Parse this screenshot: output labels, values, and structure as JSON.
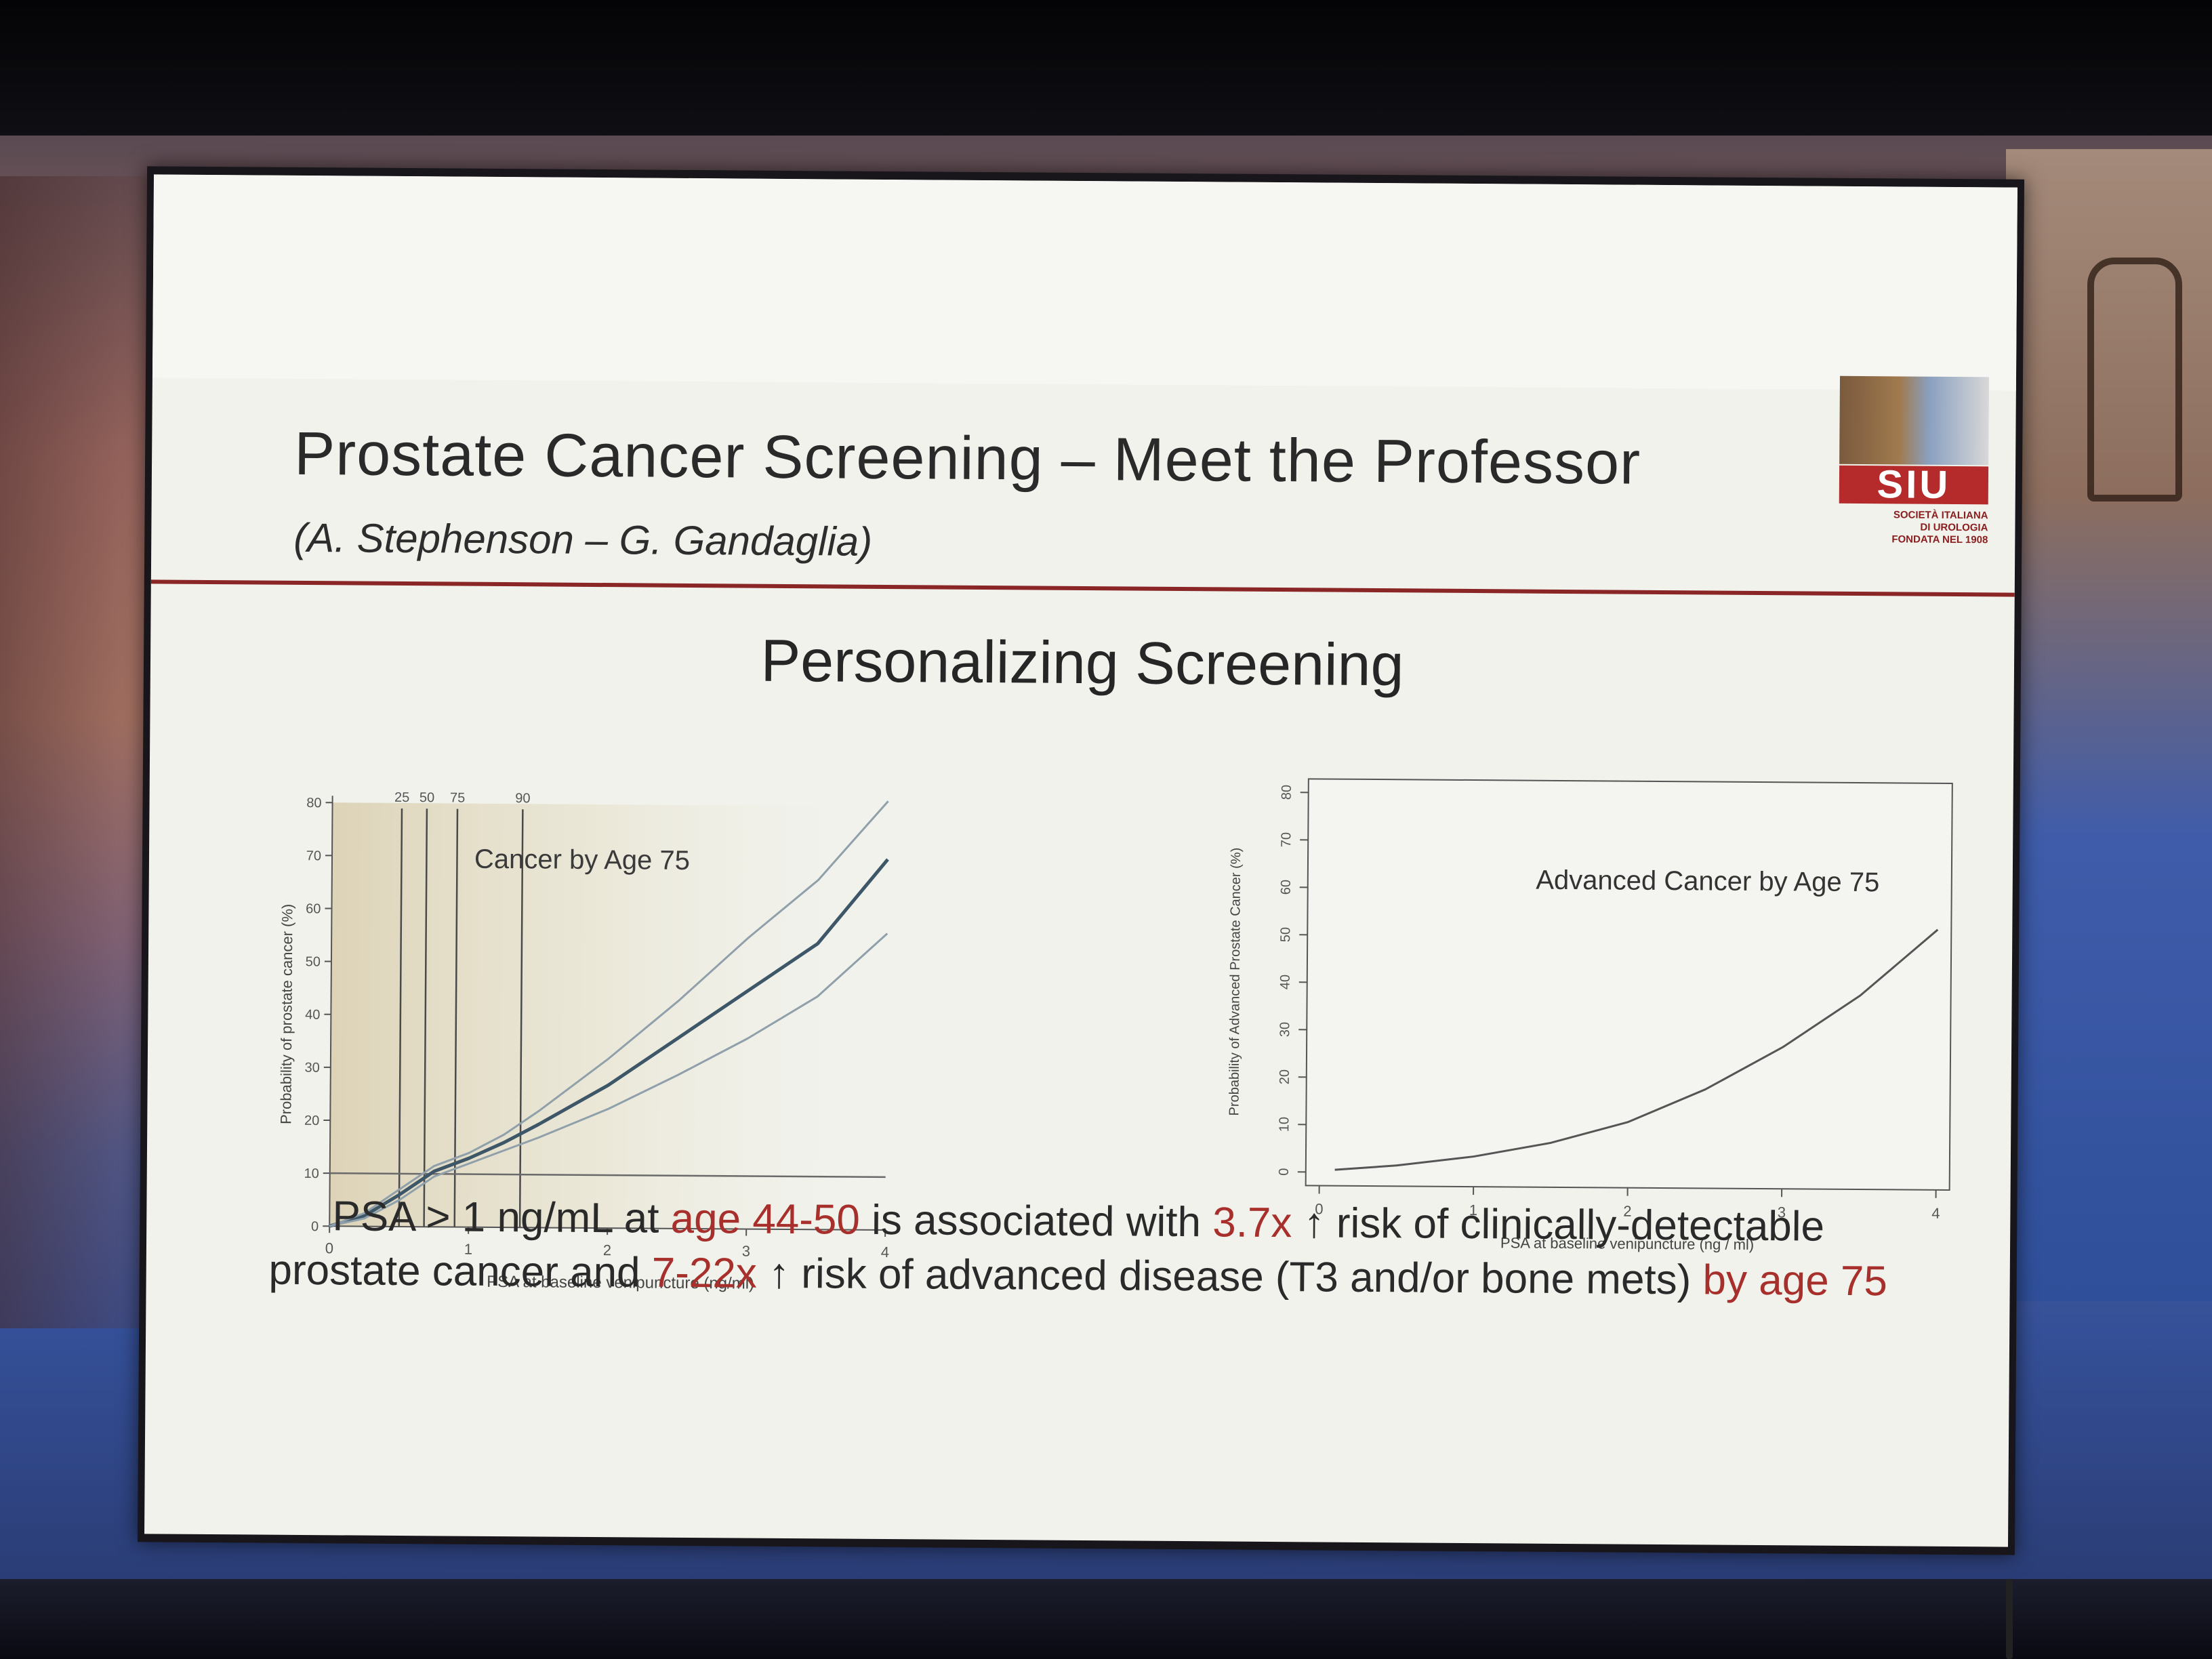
{
  "slide": {
    "title": "Prostate Cancer Screening – Meet the Professor",
    "authors": "(A. Stephenson – G. Gandaglia)",
    "section_title": "Personalizing Screening",
    "logo": {
      "text": "SIU",
      "subtitle_lines": [
        "SOCIETÀ ITALIANA",
        "DI UROLOGIA",
        "FONDATA NEL 1908"
      ]
    },
    "footnote": {
      "line1": [
        {
          "text": "PSA > 1 ng/mL at ",
          "highlight": false
        },
        {
          "text": "age 44-50",
          "highlight": true
        },
        {
          "text": " is associated with ",
          "highlight": false
        },
        {
          "text": "3.7x",
          "highlight": true
        },
        {
          "text": " ↑ risk of clinically-detectable",
          "highlight": false
        }
      ],
      "line2": [
        {
          "text": "prostate cancer and ",
          "highlight": false
        },
        {
          "text": "7-22x",
          "highlight": true
        },
        {
          "text": " ↑ risk of advanced disease (T3 and/or bone mets) ",
          "highlight": false
        },
        {
          "text": "by age 75",
          "highlight": true
        }
      ]
    },
    "colors": {
      "highlight": "#a8302c",
      "header_rule": "#8a2626",
      "curve_main": "#3d5668",
      "curve_ci": "#8fa0ab"
    }
  },
  "chart_data": [
    {
      "type": "line",
      "title": "Cancer by Age 75",
      "xlabel": "PSA at baseline venipuncture (ng/ml)",
      "ylabel": "Probability of prostate cancer (%)",
      "xlim": [
        0,
        4
      ],
      "ylim": [
        0,
        80
      ],
      "xticks": [
        0,
        1,
        2,
        3,
        4
      ],
      "yticks": [
        0,
        10,
        20,
        30,
        40,
        50,
        60,
        70,
        80
      ],
      "percentile_markers": [
        {
          "label": "25",
          "x": 0.5
        },
        {
          "label": "50",
          "x": 0.68
        },
        {
          "label": "75",
          "x": 0.9
        },
        {
          "label": "90",
          "x": 1.37
        }
      ],
      "reference_line_y": 10,
      "series": [
        {
          "role": "estimate",
          "x": [
            0,
            0.25,
            0.5,
            0.75,
            1,
            1.25,
            1.5,
            2,
            2.5,
            3,
            3.5,
            4
          ],
          "values": [
            0,
            2,
            6,
            10.5,
            13,
            16,
            19.5,
            27,
            36,
            45,
            54,
            70
          ]
        },
        {
          "role": "upper",
          "x": [
            0,
            0.25,
            0.5,
            0.75,
            1,
            1.25,
            1.5,
            2,
            2.5,
            3,
            3.5,
            4
          ],
          "values": [
            0,
            2.5,
            7,
            11.5,
            14,
            17.5,
            22,
            32,
            43,
            55,
            66,
            81
          ]
        },
        {
          "role": "lower",
          "x": [
            0,
            0.25,
            0.5,
            0.75,
            1,
            1.25,
            1.5,
            2,
            2.5,
            3,
            3.5,
            4
          ],
          "values": [
            0,
            1.5,
            5,
            9.5,
            12,
            14.5,
            17,
            22.5,
            29,
            36,
            44,
            56
          ]
        }
      ]
    },
    {
      "type": "line",
      "title": "Advanced Cancer by Age 75",
      "xlabel": "PSA at baseline venipuncture (ng / ml)",
      "ylabel": "Probability of Advanced Prostate Cancer (%)",
      "xlim": [
        0,
        4
      ],
      "ylim": [
        0,
        80
      ],
      "xticks": [
        0,
        1,
        2,
        3,
        4
      ],
      "yticks": [
        0,
        10,
        20,
        30,
        40,
        50,
        60,
        70,
        80
      ],
      "series": [
        {
          "x": [
            0.1,
            0.5,
            1,
            1.5,
            2,
            2.5,
            3,
            3.5,
            4
          ],
          "values": [
            0.5,
            1.5,
            3.5,
            6.5,
            11,
            18,
            27,
            38,
            52
          ]
        }
      ]
    }
  ]
}
